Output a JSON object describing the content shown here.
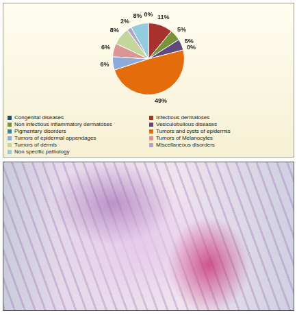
{
  "chart_data": {
    "type": "pie",
    "categories": [
      "Congenital diseases",
      "Infectious dermatoses",
      "Non infectious inflammatory dermatoses",
      "Vesiculobullous diseases",
      "Pigmentary disorders",
      "Tumors and cysts of epidermis",
      "Tumors of epidermal appendages",
      "Tumors of Melanocytes",
      "Tumors of dermis",
      "Miscellaneous disorders",
      "Non specific pathology"
    ],
    "values": [
      0,
      11,
      5,
      5,
      0,
      49,
      6,
      6,
      8,
      2,
      8
    ],
    "value_labels": [
      "0%",
      "11%",
      "5%",
      "5%",
      "0%",
      "49%",
      "6%",
      "6%",
      "8%",
      "2%",
      "8%"
    ],
    "colors": [
      "#1f4e79",
      "#a8322c",
      "#77933c",
      "#604a7b",
      "#31859c",
      "#e46c0a",
      "#8eaad8",
      "#d99694",
      "#c3d69b",
      "#b3a2c7",
      "#93cddd"
    ],
    "data_labels": true,
    "legend": "bottom"
  }
}
